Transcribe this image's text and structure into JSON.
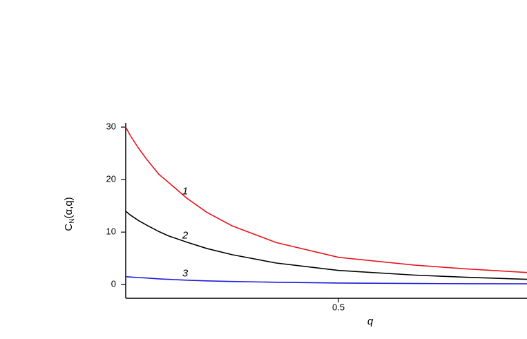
{
  "chart_data": {
    "type": "line",
    "xlabel": "q",
    "ylabel": {
      "main": "C",
      "sub": "N",
      "rest": "(α,q)"
    },
    "x": [
      0,
      0.01,
      0.03,
      0.05,
      0.078,
      0.1,
      0.143,
      0.19,
      0.25,
      0.354,
      0.5,
      0.68,
      0.8,
      0.943
    ],
    "series": [
      {
        "name": "1",
        "color": "#e8141b",
        "values": [
          30,
          28.5,
          26,
          23.8,
          21,
          19.5,
          16.5,
          13.8,
          11.2,
          8,
          5.2,
          3.7,
          3.0,
          2.3
        ]
      },
      {
        "name": "2",
        "color": "#000000",
        "values": [
          14,
          13.3,
          12.2,
          11.3,
          10.1,
          9.3,
          8.1,
          6.9,
          5.7,
          4.1,
          2.7,
          1.8,
          1.4,
          1.0
        ]
      },
      {
        "name": "3",
        "color": "#1a1ad8",
        "values": [
          1.5,
          1.45,
          1.35,
          1.25,
          1.1,
          1.0,
          0.85,
          0.72,
          0.6,
          0.45,
          0.3,
          0.22,
          0.18,
          0.15
        ]
      }
    ],
    "xlim": [
      0,
      0.943
    ],
    "xticks": [
      0.5
    ],
    "ylim": [
      -2.6,
      30.8
    ],
    "yticks": [
      0,
      10,
      20,
      30
    ]
  }
}
